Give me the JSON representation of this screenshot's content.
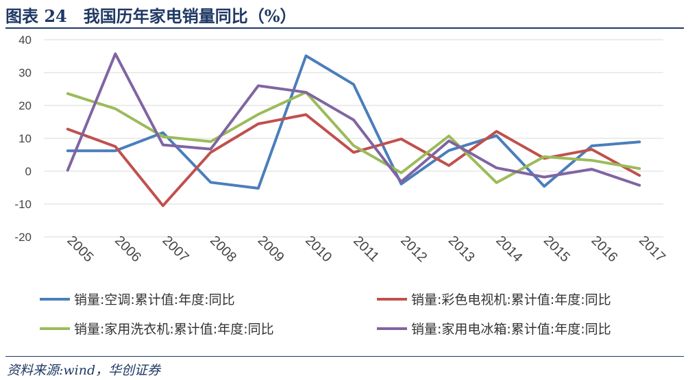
{
  "header": {
    "title": "图表 24　我国历年家电销量同比（%）"
  },
  "footer": {
    "source": "资料来源:wind，华创证券"
  },
  "chart_data": {
    "type": "line",
    "title": "",
    "xlabel": "",
    "ylabel": "",
    "ylim": [
      -20,
      40
    ],
    "yticks": [
      40,
      30,
      20,
      10,
      0,
      -10,
      -20
    ],
    "ytick_labels": [
      "40",
      "30",
      "20",
      "10",
      "0",
      "-10",
      "-20"
    ],
    "grid": true,
    "legend_position": "bottom",
    "categories": [
      "2005",
      "2006",
      "2007",
      "2008",
      "2009",
      "2010",
      "2011",
      "2012",
      "2013",
      "2014",
      "2015",
      "2016",
      "2017"
    ],
    "series": [
      {
        "name": "销量:空调:累计值:年度:同比",
        "color": "#4a7ebb",
        "values": [
          6.2,
          6.2,
          11.7,
          -3.4,
          -5.2,
          35.1,
          26.4,
          -3.9,
          6.3,
          10.8,
          -4.6,
          7.7,
          8.9
        ]
      },
      {
        "name": "销量:彩色电视机:累计值:年度:同比",
        "color": "#c0504d",
        "values": [
          12.8,
          7.5,
          -10.5,
          5.7,
          14.4,
          17.2,
          5.7,
          9.8,
          1.7,
          12.1,
          3.9,
          6.6,
          -1.3
        ]
      },
      {
        "name": "销量:家用洗衣机:累计值:年度:同比",
        "color": "#9bbb59",
        "values": [
          23.6,
          19.0,
          10.5,
          9.0,
          17.3,
          24.0,
          7.8,
          -0.5,
          10.7,
          -3.5,
          4.4,
          3.3,
          0.8
        ]
      },
      {
        "name": "销量:家用电冰箱:累计值:年度:同比",
        "color": "#8064a2",
        "values": [
          0.3,
          35.7,
          8.0,
          6.7,
          26.0,
          24.0,
          15.6,
          -3.2,
          9.2,
          1.0,
          -1.8,
          0.6,
          -4.3
        ]
      }
    ]
  }
}
